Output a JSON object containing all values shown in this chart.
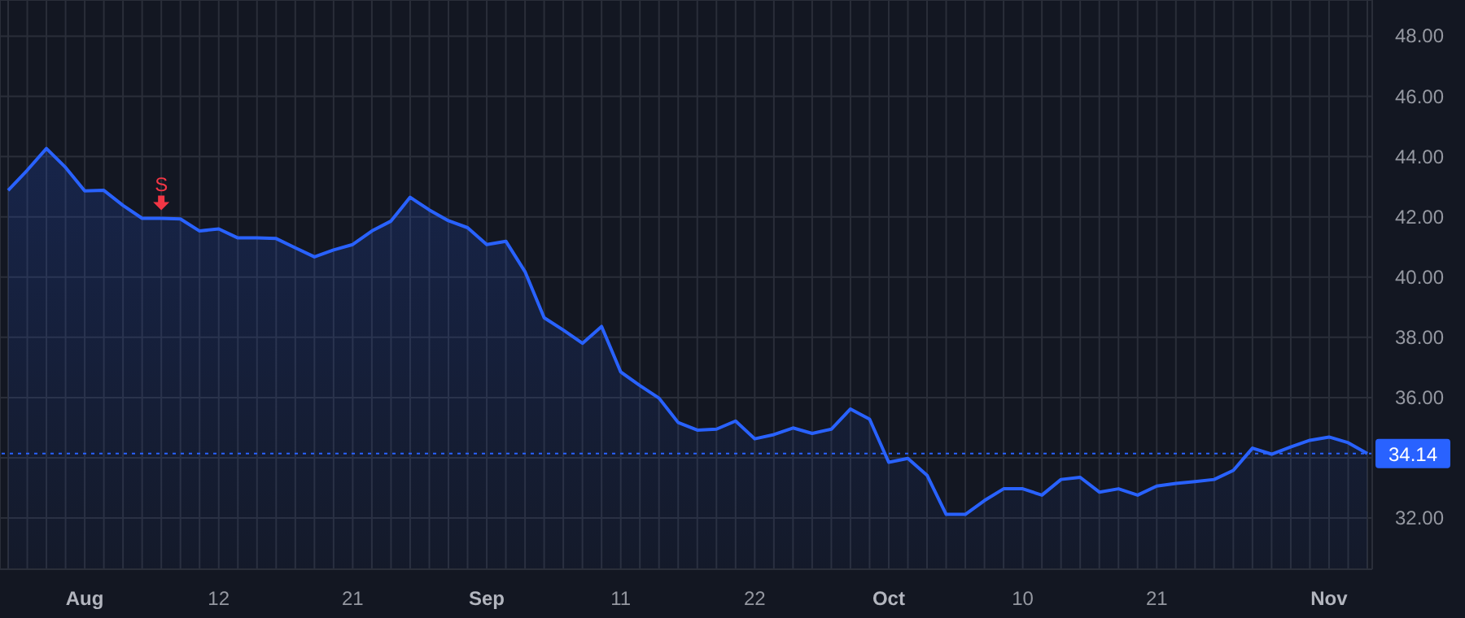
{
  "chart_data": {
    "type": "area",
    "categories": [
      null,
      null,
      null,
      null,
      "Aug",
      null,
      null,
      null,
      null,
      null,
      null,
      "12",
      null,
      null,
      null,
      null,
      null,
      null,
      "21",
      null,
      null,
      null,
      null,
      null,
      null,
      "Sep",
      null,
      null,
      null,
      null,
      null,
      null,
      "11",
      null,
      null,
      null,
      null,
      null,
      null,
      "22",
      null,
      null,
      null,
      null,
      null,
      null,
      "Oct",
      null,
      null,
      null,
      null,
      null,
      null,
      "10",
      null,
      null,
      null,
      null,
      null,
      null,
      "21",
      null,
      null,
      null,
      null,
      null,
      null,
      null,
      null,
      "Nov",
      null,
      null
    ],
    "series": [
      {
        "color": "#2962ff",
        "values": [
          42.88,
          43.55,
          44.27,
          43.64,
          42.86,
          42.88,
          42.38,
          41.95,
          41.95,
          41.93,
          41.53,
          41.6,
          41.3,
          41.3,
          41.28,
          40.97,
          40.67,
          40.9,
          41.08,
          41.53,
          41.86,
          42.65,
          42.23,
          41.87,
          41.64,
          41.08,
          41.19,
          40.18,
          38.65,
          38.24,
          37.8,
          38.36,
          36.85,
          36.4,
          35.98,
          35.17,
          34.92,
          34.95,
          35.22,
          34.63,
          34.77,
          34.99,
          34.81,
          34.95,
          35.62,
          35.28,
          33.85,
          33.98,
          33.42,
          32.12,
          32.12,
          32.58,
          32.97,
          32.97,
          32.76,
          33.28,
          33.35,
          32.86,
          32.97,
          32.76,
          33.06,
          33.15,
          33.21,
          33.28,
          33.58,
          34.32,
          34.12,
          34.36,
          34.58,
          34.69,
          34.5,
          34.14
        ]
      }
    ],
    "ylim": [
      30.3,
      49.2
    ],
    "yticks": [
      {
        "value": 32,
        "label": "32.00"
      },
      {
        "value": 34,
        "label": null
      },
      {
        "value": 36,
        "label": "36.00"
      },
      {
        "value": 38,
        "label": "38.00"
      },
      {
        "value": 40,
        "label": "40.00"
      },
      {
        "value": 42,
        "label": "42.00"
      },
      {
        "value": 44,
        "label": "44.00"
      },
      {
        "value": 46,
        "label": "46.00"
      },
      {
        "value": 48,
        "label": "48.00"
      }
    ],
    "ref_lines": [
      {
        "axis": "y",
        "value": 34.14,
        "label": "34.14",
        "color": "#2962ff",
        "line_style": "dotted"
      }
    ],
    "annotations": [
      {
        "text": "S",
        "y": 41.95
      }
    ],
    "grid": true
  }
}
